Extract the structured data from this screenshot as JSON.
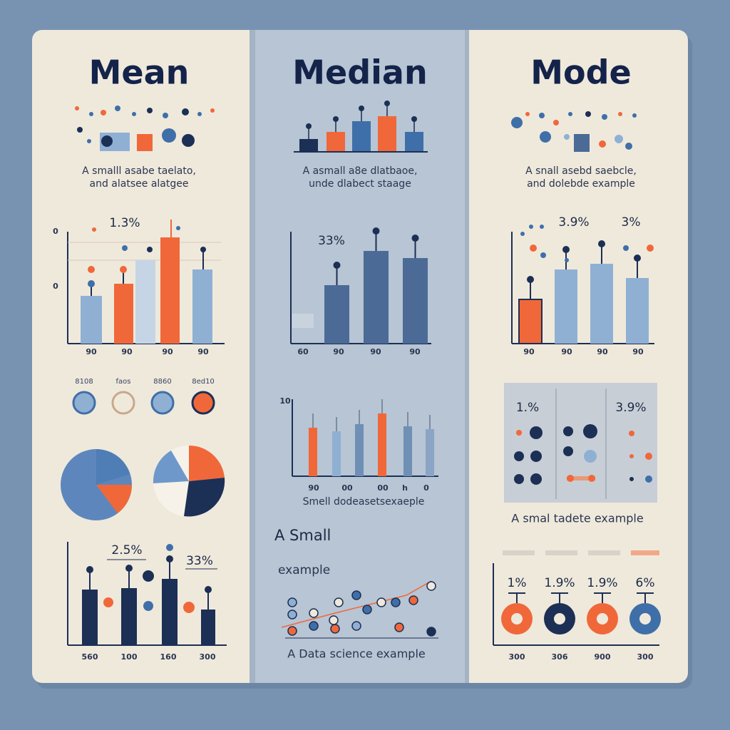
{
  "columns": [
    {
      "title": "Mean",
      "caption": [
        "A smalll asabe taelato,",
        "and alatsee alatgee"
      ],
      "bar_chart": {
        "label": "1.3%",
        "axis_labels": [
          "0",
          "0"
        ],
        "ticks": [
          "90",
          "90",
          "90",
          "90"
        ]
      },
      "circle_labels": [
        "8108",
        "faos",
        "8860",
        "8ed10"
      ],
      "bottom_chart": {
        "labels": [
          "2.5%",
          "33%"
        ],
        "ticks": [
          "560",
          "100",
          "160",
          "300"
        ]
      }
    },
    {
      "title": "Median",
      "caption": [
        "A asmall a8e dlatbaoe,",
        "unde dlabect staage"
      ],
      "bar_chart": {
        "label": "33%",
        "ticks": [
          "60",
          "90",
          "90",
          "90"
        ]
      },
      "second_chart": {
        "axis_label": "10",
        "ticks": [
          "90",
          "00",
          "00",
          "h",
          "0"
        ],
        "caption": "Smell dodeasetsexaeple"
      },
      "scatter": {
        "heading": [
          "A Small",
          "example"
        ],
        "caption": "A Data science example"
      }
    },
    {
      "title": "Mode",
      "caption": [
        "A snall asebd saebcle,",
        "and dolebde example"
      ],
      "bar_chart": {
        "labels": [
          "3.9%",
          "3%"
        ],
        "ticks": [
          "90",
          "90",
          "90",
          "90"
        ]
      },
      "dot_panel": {
        "labels": [
          "1.%",
          "3.9%"
        ],
        "caption": "A smal tadete example"
      },
      "bottom_chart": {
        "labels": [
          "1%",
          "1.9%",
          "1.9%",
          "6%"
        ],
        "ticks": [
          "300",
          "306",
          "900",
          "300"
        ]
      }
    }
  ]
}
